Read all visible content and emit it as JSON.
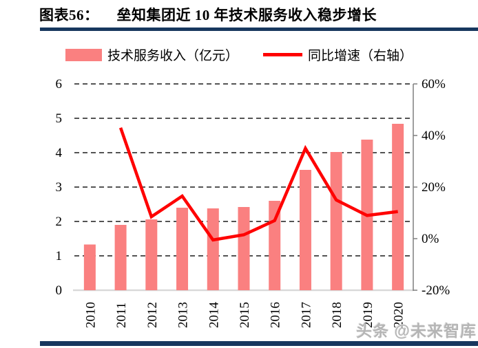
{
  "page": {
    "figure_label": "图表56：",
    "title": "垒知集团近 10 年技术服务收入稳步增长",
    "watermark": "头条 @未来智库",
    "accent_color": "#17375E"
  },
  "legend": {
    "bar_label": "技术服务收入（亿元）",
    "line_label": "同比增速（右轴）"
  },
  "chart_data": {
    "type": "bar",
    "subtype": "combo bar+line, dual axis",
    "title": "垒知集团近 10 年技术服务收入稳步增长",
    "categories": [
      "2010",
      "2011",
      "2012",
      "2013",
      "2014",
      "2015",
      "2016",
      "2017",
      "2018",
      "2019",
      "2020"
    ],
    "series": [
      {
        "name": "技术服务收入（亿元）",
        "type": "bar",
        "axis": "left",
        "color": "#FA8080",
        "values": [
          1.33,
          1.9,
          2.06,
          2.4,
          2.38,
          2.42,
          2.6,
          3.5,
          4.02,
          4.38,
          4.84
        ]
      },
      {
        "name": "同比增速（右轴）",
        "type": "line",
        "axis": "right",
        "color": "#FF0000",
        "values": [
          null,
          43,
          8.5,
          16.5,
          -0.5,
          1.5,
          7,
          35,
          15,
          9,
          10.5
        ],
        "unit": "%"
      }
    ],
    "left_axis": {
      "min": 0,
      "max": 6,
      "tick_step": 1,
      "ticks": [
        6,
        5,
        4,
        3,
        2,
        1,
        0
      ]
    },
    "right_axis": {
      "min": -20,
      "max": 60,
      "tick_step": 20,
      "ticks": [
        60,
        40,
        20,
        0,
        -20
      ],
      "tick_labels": [
        "60%",
        "40%",
        "20%",
        "0%",
        "-20%"
      ]
    },
    "grid": "horizontal black dashed lines at left-axis integers",
    "grid_color": "#1a1a1a",
    "baseline_color": "#D9D9D9",
    "axis_color": "#7f7f7f",
    "legend_position": "top-center",
    "x_label_rotation": -90
  }
}
